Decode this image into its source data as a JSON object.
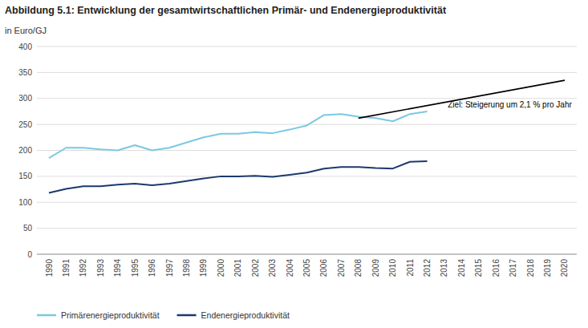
{
  "chart_data": {
    "type": "line",
    "title": "Abbildung 5.1: Entwicklung der gesamtwirtschaftlichen Primär- und Endenergieproduktivität",
    "y_label": "in Euro/GJ",
    "x": [
      1990,
      1991,
      1992,
      1993,
      1994,
      1995,
      1996,
      1997,
      1998,
      1999,
      2000,
      2001,
      2002,
      2003,
      2004,
      2005,
      2006,
      2007,
      2008,
      2009,
      2010,
      2011,
      2012
    ],
    "xlim": [
      1989.3,
      2020.7
    ],
    "xticks": [
      1990,
      1991,
      1992,
      1993,
      1994,
      1995,
      1996,
      1997,
      1998,
      1999,
      2000,
      2001,
      2002,
      2003,
      2004,
      2005,
      2006,
      2007,
      2008,
      2009,
      2010,
      2011,
      2012,
      2013,
      2014,
      2015,
      2016,
      2017,
      2018,
      2019,
      2020
    ],
    "ylim": [
      0,
      400
    ],
    "yticks": [
      0,
      50,
      100,
      150,
      200,
      250,
      300,
      350,
      400
    ],
    "grid": true,
    "legend": "bottom",
    "series": [
      {
        "name": "Primärenergieproduktivität",
        "color": "#7BC8E2",
        "values": [
          185,
          205,
          205,
          202,
          200,
          210,
          200,
          205,
          215,
          225,
          232,
          232,
          235,
          233,
          240,
          248,
          268,
          270,
          265,
          262,
          256,
          270,
          275
        ]
      },
      {
        "name": "Endenergieproduktivität",
        "color": "#1B3A6B",
        "values": [
          118,
          126,
          131,
          131,
          134,
          136,
          133,
          136,
          141,
          146,
          150,
          150,
          151,
          149,
          153,
          157,
          165,
          168,
          168,
          166,
          165,
          178,
          179
        ]
      },
      {
        "color": "#000000",
        "x": [
          2008,
          2020
        ],
        "values": [
          262,
          335
        ]
      }
    ],
    "annotations": [
      {
        "text": "Ziel: Steigerung um 2,1 % pro Jahr",
        "x": 2013.2,
        "y": 278
      }
    ]
  }
}
